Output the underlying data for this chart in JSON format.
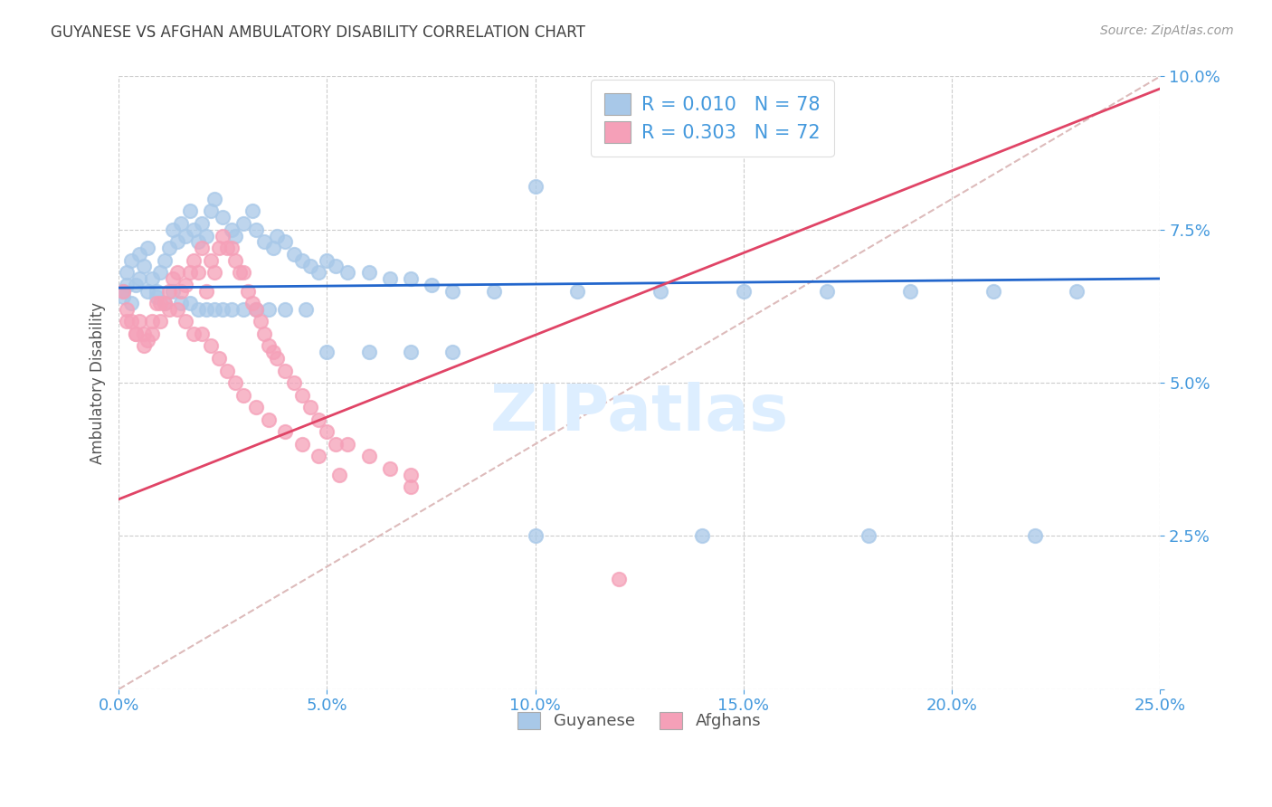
{
  "title": "GUYANESE VS AFGHAN AMBULATORY DISABILITY CORRELATION CHART",
  "source": "Source: ZipAtlas.com",
  "ylabel": "Ambulatory Disability",
  "xlim": [
    0.0,
    0.25
  ],
  "ylim": [
    0.0,
    0.1
  ],
  "xticks": [
    0.0,
    0.05,
    0.1,
    0.15,
    0.2,
    0.25
  ],
  "yticks": [
    0.0,
    0.025,
    0.05,
    0.075,
    0.1
  ],
  "legend_labels": [
    "Guyanese",
    "Afghans"
  ],
  "guyanese_color": "#a8c8e8",
  "afghan_color": "#f5a0b8",
  "guyanese_line_color": "#2266cc",
  "afghan_line_color": "#e04466",
  "diagonal_line_color": "#ddbbbb",
  "axis_color": "#4499dd",
  "watermark_color": "#ddeeff",
  "guyanese_x": [
    0.001,
    0.002,
    0.003,
    0.004,
    0.005,
    0.006,
    0.007,
    0.008,
    0.009,
    0.01,
    0.011,
    0.012,
    0.013,
    0.014,
    0.015,
    0.016,
    0.017,
    0.018,
    0.019,
    0.02,
    0.021,
    0.022,
    0.023,
    0.025,
    0.027,
    0.028,
    0.03,
    0.032,
    0.033,
    0.035,
    0.037,
    0.038,
    0.04,
    0.042,
    0.044,
    0.046,
    0.048,
    0.05,
    0.052,
    0.055,
    0.06,
    0.065,
    0.07,
    0.075,
    0.08,
    0.09,
    0.1,
    0.11,
    0.13,
    0.15,
    0.17,
    0.19,
    0.21,
    0.23,
    0.001,
    0.002,
    0.003,
    0.005,
    0.007,
    0.009,
    0.011,
    0.013,
    0.015,
    0.017,
    0.019,
    0.021,
    0.023,
    0.025,
    0.027,
    0.03,
    0.033,
    0.036,
    0.04,
    0.045,
    0.05,
    0.06,
    0.07,
    0.08,
    0.1,
    0.14,
    0.18,
    0.22
  ],
  "guyanese_y": [
    0.065,
    0.068,
    0.07,
    0.066,
    0.071,
    0.069,
    0.072,
    0.067,
    0.065,
    0.068,
    0.07,
    0.072,
    0.075,
    0.073,
    0.076,
    0.074,
    0.078,
    0.075,
    0.073,
    0.076,
    0.074,
    0.078,
    0.08,
    0.077,
    0.075,
    0.074,
    0.076,
    0.078,
    0.075,
    0.073,
    0.072,
    0.074,
    0.073,
    0.071,
    0.07,
    0.069,
    0.068,
    0.07,
    0.069,
    0.068,
    0.068,
    0.067,
    0.067,
    0.066,
    0.065,
    0.065,
    0.082,
    0.065,
    0.065,
    0.065,
    0.065,
    0.065,
    0.065,
    0.065,
    0.064,
    0.066,
    0.063,
    0.067,
    0.065,
    0.064,
    0.063,
    0.065,
    0.063,
    0.063,
    0.062,
    0.062,
    0.062,
    0.062,
    0.062,
    0.062,
    0.062,
    0.062,
    0.062,
    0.062,
    0.055,
    0.055,
    0.055,
    0.055,
    0.025,
    0.025,
    0.025,
    0.025
  ],
  "afghan_x": [
    0.001,
    0.002,
    0.003,
    0.004,
    0.005,
    0.006,
    0.007,
    0.008,
    0.009,
    0.01,
    0.011,
    0.012,
    0.013,
    0.014,
    0.015,
    0.016,
    0.017,
    0.018,
    0.019,
    0.02,
    0.021,
    0.022,
    0.023,
    0.024,
    0.025,
    0.026,
    0.027,
    0.028,
    0.029,
    0.03,
    0.031,
    0.032,
    0.033,
    0.034,
    0.035,
    0.036,
    0.037,
    0.038,
    0.04,
    0.042,
    0.044,
    0.046,
    0.048,
    0.05,
    0.052,
    0.055,
    0.06,
    0.065,
    0.07,
    0.002,
    0.004,
    0.006,
    0.008,
    0.01,
    0.012,
    0.014,
    0.016,
    0.018,
    0.02,
    0.022,
    0.024,
    0.026,
    0.028,
    0.03,
    0.033,
    0.036,
    0.04,
    0.044,
    0.048,
    0.053,
    0.07,
    0.12
  ],
  "afghan_y": [
    0.065,
    0.062,
    0.06,
    0.058,
    0.06,
    0.058,
    0.057,
    0.06,
    0.063,
    0.063,
    0.063,
    0.065,
    0.067,
    0.068,
    0.065,
    0.066,
    0.068,
    0.07,
    0.068,
    0.072,
    0.065,
    0.07,
    0.068,
    0.072,
    0.074,
    0.072,
    0.072,
    0.07,
    0.068,
    0.068,
    0.065,
    0.063,
    0.062,
    0.06,
    0.058,
    0.056,
    0.055,
    0.054,
    0.052,
    0.05,
    0.048,
    0.046,
    0.044,
    0.042,
    0.04,
    0.04,
    0.038,
    0.036,
    0.035,
    0.06,
    0.058,
    0.056,
    0.058,
    0.06,
    0.062,
    0.062,
    0.06,
    0.058,
    0.058,
    0.056,
    0.054,
    0.052,
    0.05,
    0.048,
    0.046,
    0.044,
    0.042,
    0.04,
    0.038,
    0.035,
    0.033,
    0.018
  ],
  "guyanese_line_x": [
    0.0,
    0.25
  ],
  "guyanese_line_y": [
    0.0655,
    0.067
  ],
  "afghan_line_x": [
    0.0,
    0.25
  ],
  "afghan_line_y": [
    0.031,
    0.098
  ],
  "diag_line_x": [
    0.0,
    0.25
  ],
  "diag_line_y": [
    0.0,
    0.1
  ]
}
